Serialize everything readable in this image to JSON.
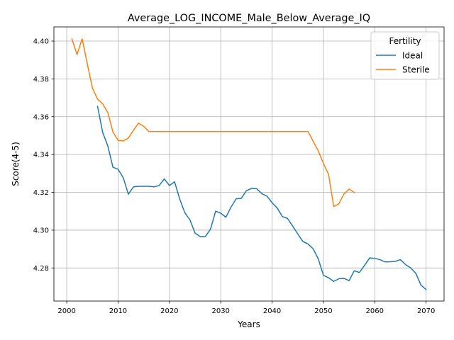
{
  "chart_data": {
    "type": "line",
    "title": "Average_LOG_INCOME_Male_Below_Average_IQ",
    "xlabel": "Years",
    "ylabel": "Score(4-5)",
    "xlim": [
      1997.5,
      2073.5
    ],
    "ylim": [
      4.2625,
      4.4075
    ],
    "x_ticks": [
      2000,
      2010,
      2020,
      2030,
      2040,
      2050,
      2060,
      2070
    ],
    "y_ticks": [
      4.28,
      4.3,
      4.32,
      4.34,
      4.36,
      4.38,
      4.4
    ],
    "x_tick_labels": [
      "2000",
      "2010",
      "2020",
      "2030",
      "2040",
      "2050",
      "2060",
      "2070"
    ],
    "y_tick_labels": [
      "4.28",
      "4.30",
      "4.32",
      "4.34",
      "4.36",
      "4.38",
      "4.40"
    ],
    "grid": true,
    "legend": {
      "title": "Fertility",
      "position": "top-right",
      "entries": [
        "Ideal",
        "Sterile"
      ]
    },
    "series": [
      {
        "name": "Ideal",
        "color": "#1f77b4",
        "x": [
          2006,
          2007,
          2008,
          2009,
          2010,
          2011,
          2012,
          2013,
          2014,
          2015,
          2016,
          2017,
          2018,
          2019,
          2020,
          2021,
          2022,
          2023,
          2024,
          2025,
          2026,
          2027,
          2028,
          2029,
          2030,
          2031,
          2032,
          2033,
          2034,
          2035,
          2036,
          2037,
          2038,
          2039,
          2040,
          2041,
          2042,
          2043,
          2044,
          2045,
          2046,
          2047,
          2048,
          2049,
          2050,
          2051,
          2052,
          2053,
          2054,
          2055,
          2056,
          2057,
          2058,
          2059,
          2060,
          2061,
          2062,
          2063,
          2064,
          2065,
          2066,
          2067,
          2068,
          2069,
          2070
        ],
        "values": [
          4.3655,
          4.3517,
          4.3445,
          4.3333,
          4.3322,
          4.3278,
          4.319,
          4.3229,
          4.3232,
          4.3232,
          4.3232,
          4.3229,
          4.3236,
          4.3271,
          4.3236,
          4.3256,
          4.3165,
          4.3092,
          4.3054,
          4.2984,
          4.2966,
          4.2966,
          4.3005,
          4.31,
          4.309,
          4.3068,
          4.3122,
          4.3166,
          4.3168,
          4.3209,
          4.3221,
          4.3219,
          4.3193,
          4.318,
          4.3145,
          4.3117,
          4.3072,
          4.3062,
          4.3022,
          4.298,
          4.294,
          4.2927,
          4.2901,
          4.2848,
          4.2761,
          4.2748,
          4.2729,
          4.2743,
          4.2745,
          4.2733,
          4.2785,
          4.2776,
          4.2813,
          4.2853,
          4.2851,
          4.2844,
          4.2832,
          4.2833,
          4.2835,
          4.2844,
          4.2818,
          4.28,
          4.2772,
          4.2709,
          4.2686
        ]
      },
      {
        "name": "Sterile",
        "color": "#ff7f0e",
        "x": [
          2001,
          2002,
          2003,
          2004,
          2005,
          2006,
          2007,
          2008,
          2009,
          2010,
          2011,
          2012,
          2013,
          2014,
          2015,
          2016,
          2017,
          2018,
          2019,
          2020,
          2021,
          2022,
          2023,
          2024,
          2025,
          2026,
          2027,
          2028,
          2029,
          2030,
          2031,
          2032,
          2033,
          2034,
          2035,
          2036,
          2037,
          2038,
          2039,
          2040,
          2041,
          2042,
          2043,
          2044,
          2045,
          2046,
          2047,
          2048,
          2049,
          2050,
          2051,
          2052,
          2053,
          2054,
          2055,
          2056
        ],
        "values": [
          4.4012,
          4.3929,
          4.4012,
          4.388,
          4.3752,
          4.3693,
          4.3668,
          4.3622,
          4.3519,
          4.3475,
          4.3472,
          4.3487,
          4.3529,
          4.3566,
          4.3549,
          4.3522,
          4.3522,
          4.3522,
          4.3522,
          4.3522,
          4.3522,
          4.3522,
          4.3522,
          4.3522,
          4.3522,
          4.3522,
          4.3522,
          4.3522,
          4.3522,
          4.3522,
          4.3522,
          4.3522,
          4.3522,
          4.3522,
          4.3522,
          4.3522,
          4.3522,
          4.3522,
          4.3522,
          4.3522,
          4.3522,
          4.3522,
          4.3522,
          4.3522,
          4.3522,
          4.3522,
          4.3522,
          4.347,
          4.3419,
          4.3353,
          4.3295,
          4.3125,
          4.3139,
          4.3192,
          4.3217,
          4.3199
        ]
      }
    ]
  }
}
